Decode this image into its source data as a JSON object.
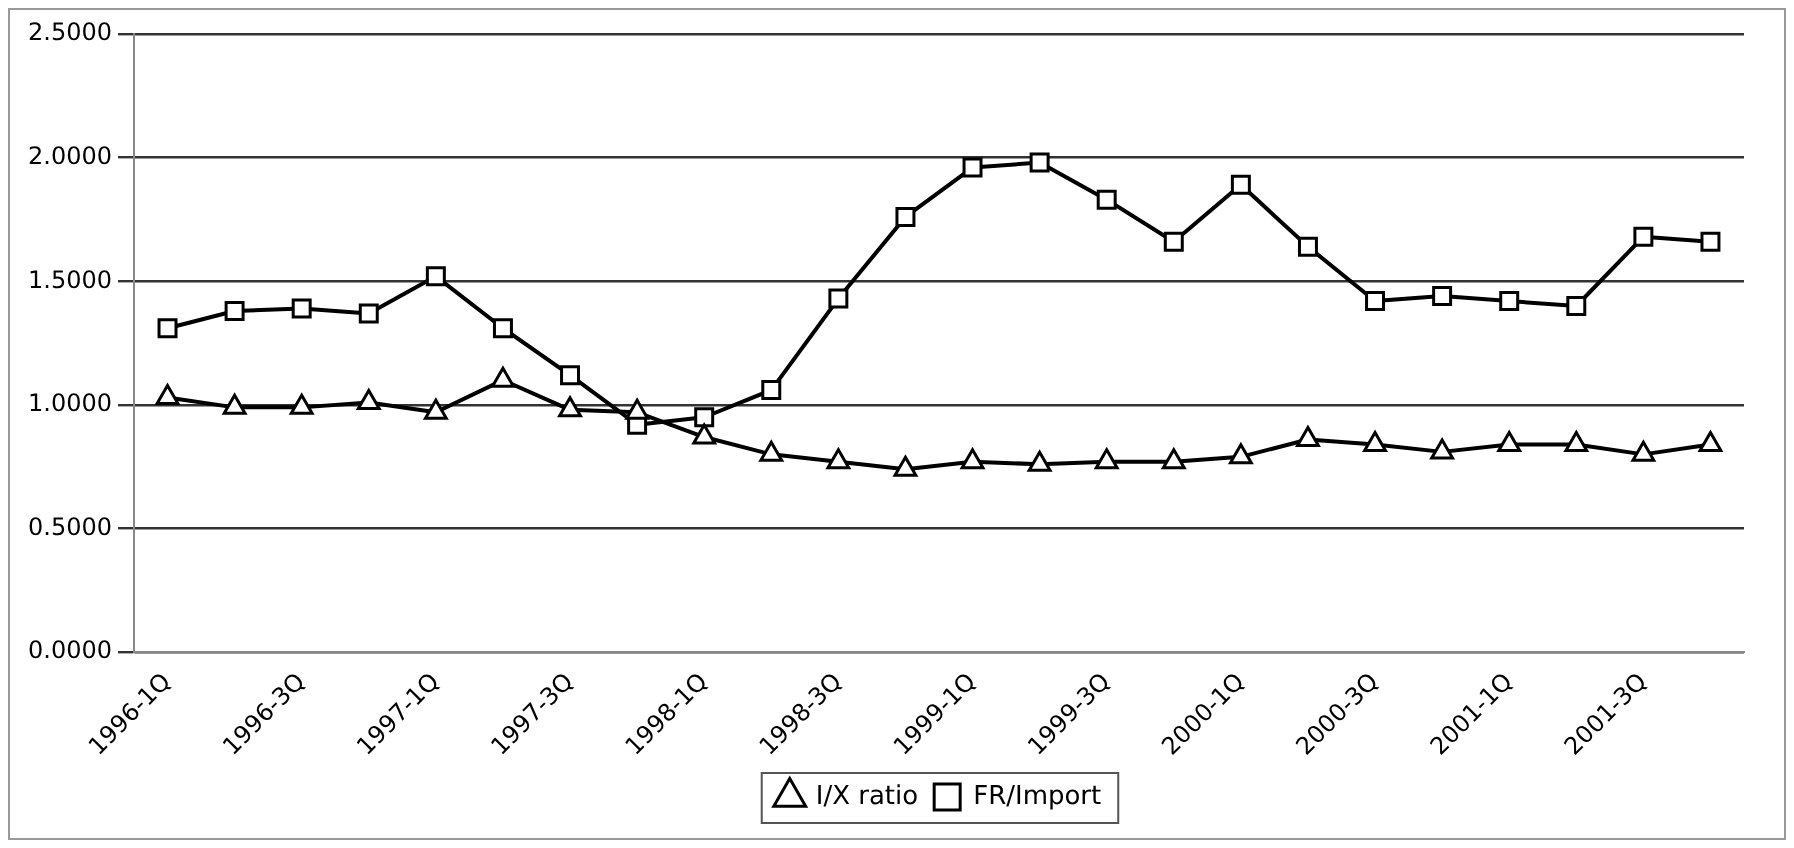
{
  "chart_data": {
    "type": "line",
    "categories": [
      "1996-1Q",
      null,
      "1996-3Q",
      null,
      "1997-1Q",
      null,
      "1997-3Q",
      null,
      "1998-1Q",
      null,
      "1998-3Q",
      null,
      "1999-1Q",
      null,
      "1999-3Q",
      null,
      "2000-1Q",
      null,
      "2000-3Q",
      null,
      "2001-1Q",
      null,
      "2001-3Q",
      null
    ],
    "series": [
      {
        "name": "I/X ratio",
        "color": "#000000",
        "marker": "triangle",
        "values": [
          1.03,
          0.99,
          0.99,
          1.01,
          0.97,
          1.1,
          0.98,
          0.97,
          0.87,
          0.8,
          0.77,
          0.74,
          0.77,
          0.76,
          0.77,
          0.77,
          0.79,
          0.86,
          0.84,
          0.81,
          0.84,
          0.84,
          0.8,
          0.84
        ]
      },
      {
        "name": "FR/Import",
        "color": "#000000",
        "marker": "square",
        "values": [
          1.31,
          1.38,
          1.39,
          1.37,
          1.52,
          1.31,
          1.12,
          0.92,
          0.95,
          1.06,
          1.43,
          1.76,
          1.96,
          1.98,
          1.83,
          1.66,
          1.89,
          1.64,
          1.42,
          1.44,
          1.42,
          1.4,
          1.68,
          1.66
        ]
      }
    ],
    "ylim": [
      0,
      2.5
    ],
    "yticks": [
      {
        "value": 0,
        "label": "0.0000"
      },
      {
        "value": 0.5,
        "label": "0.5000"
      },
      {
        "value": 1,
        "label": "1.0000"
      },
      {
        "value": 1.5,
        "label": "1.5000"
      },
      {
        "value": 2,
        "label": "2.0000"
      },
      {
        "value": 2.5,
        "label": "2.5000"
      }
    ],
    "grid": "y",
    "legend": "bottom",
    "line_style": "solid"
  }
}
